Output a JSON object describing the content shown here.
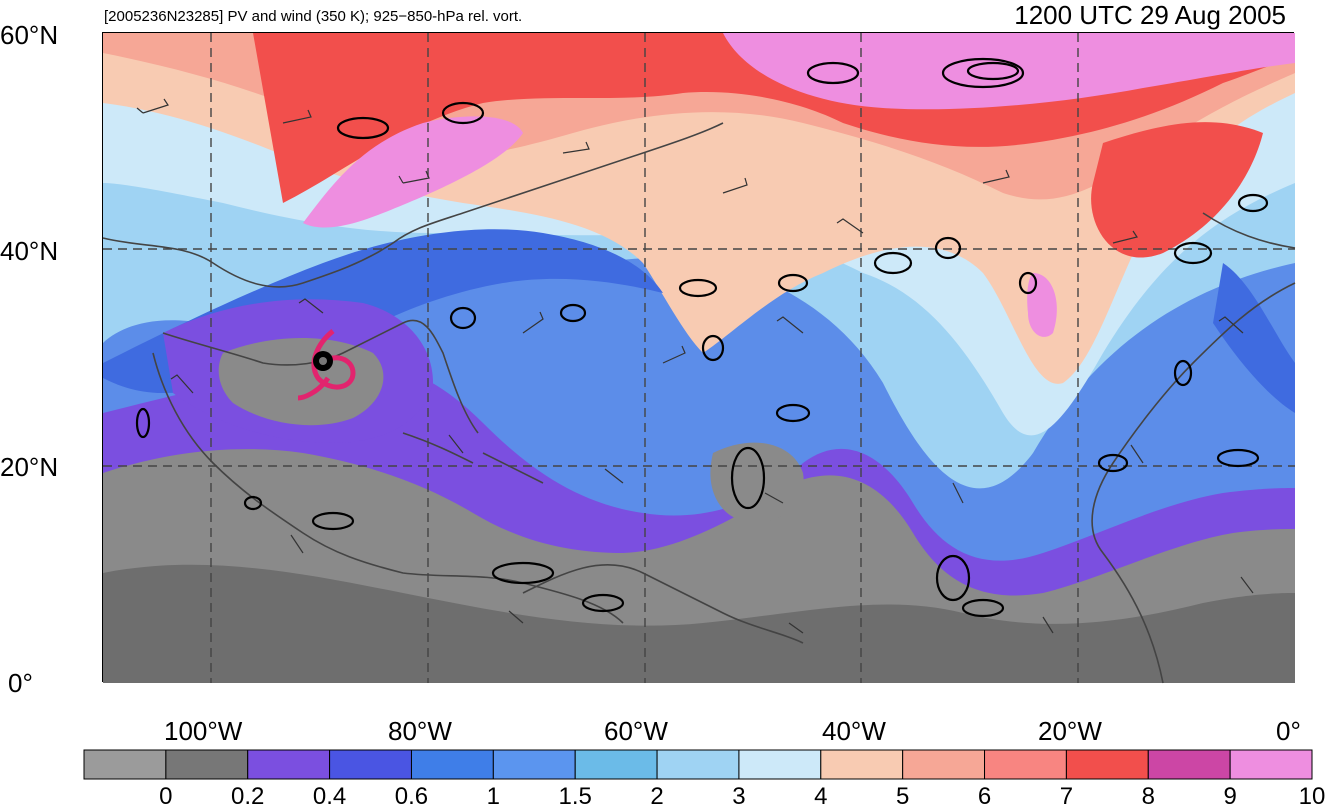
{
  "header": {
    "left_title": "[2005236N23285] PV and wind (350 K); 925−850-hPa rel. vort.",
    "right_title": "1200 UTC 29 Aug 2005"
  },
  "axes": {
    "lat_labels": [
      "60°N",
      "40°N",
      "20°N",
      "0°"
    ],
    "lon_labels": [
      "100°W",
      "80°W",
      "60°W",
      "40°W",
      "20°W",
      "0°"
    ]
  },
  "colorbar": {
    "labels": [
      "0",
      "0.2",
      "0.4",
      "0.6",
      "1",
      "1.5",
      "2",
      "3",
      "4",
      "5",
      "6",
      "7",
      "8",
      "9",
      "10"
    ],
    "colors": [
      "#9b9b9b",
      "#777777",
      "#7b4fe0",
      "#4a55e3",
      "#3f7ee8",
      "#5b95ef",
      "#6bbbe8",
      "#9fd3f3",
      "#cde9f9",
      "#f8cbb2",
      "#f6a796",
      "#f88581",
      "#f24f4c",
      "#cc46a5",
      "#ee8ee0"
    ]
  },
  "map": {
    "extent": {
      "lon": [
        -110,
        0
      ],
      "lat": [
        0,
        60
      ]
    },
    "storm_marker_color": "#e2246e"
  }
}
